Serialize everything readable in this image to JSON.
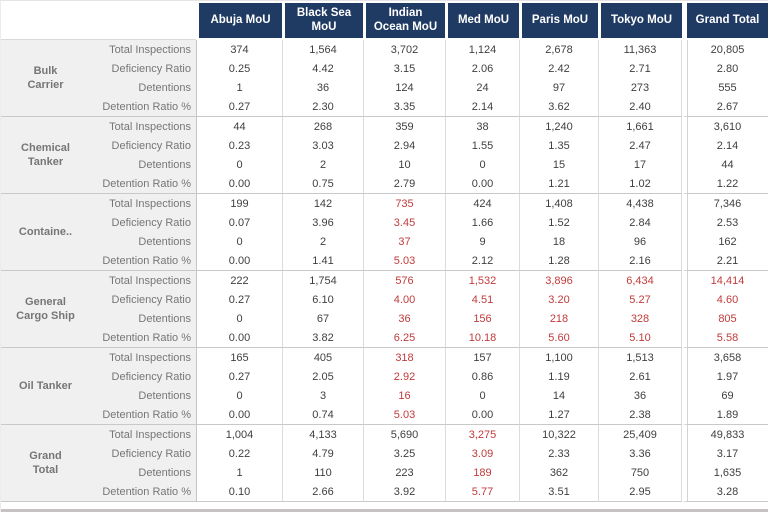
{
  "colors": {
    "header_bg": "#1F3A63",
    "header_text": "#FFFFFF",
    "label_bg": "#F0F0F0",
    "label_text": "#767676",
    "value_text": "#3F3F3F",
    "alert_text": "#C13B3B",
    "grid": "#DCDCDC"
  },
  "chart_data": {
    "type": "table",
    "title": "",
    "corner_label": "",
    "columns": [
      "Abuja MoU",
      "Black Sea MoU",
      "Indian Ocean MoU",
      "Med MoU",
      "Paris MoU",
      "Tokyo MoU",
      "Grand Total"
    ],
    "columns_display": [
      "Abuja MoU",
      "Black Sea\nMoU",
      "Indian\nOcean MoU",
      "Med MoU",
      "Paris MoU",
      "Tokyo MoU",
      "Grand Total"
    ],
    "metrics": [
      "Total Inspections",
      "Deficiency Ratio",
      "Detentions",
      "Detention Ratio %"
    ],
    "highlight_note_color": "#C13B3B",
    "groups": [
      {
        "name": "Bulk Carrier",
        "display": "Bulk\nCarrier",
        "rows": [
          {
            "metric": "Total Inspections",
            "values": [
              "374",
              "1,564",
              "3,702",
              "1,124",
              "2,678",
              "11,363",
              "20,805"
            ],
            "red": [
              0,
              0,
              0,
              0,
              0,
              0,
              0
            ]
          },
          {
            "metric": "Deficiency Ratio",
            "values": [
              "0.25",
              "4.42",
              "3.15",
              "2.06",
              "2.42",
              "2.71",
              "2.80"
            ],
            "red": [
              0,
              0,
              0,
              0,
              0,
              0,
              0
            ]
          },
          {
            "metric": "Detentions",
            "values": [
              "1",
              "36",
              "124",
              "24",
              "97",
              "273",
              "555"
            ],
            "red": [
              0,
              0,
              0,
              0,
              0,
              0,
              0
            ]
          },
          {
            "metric": "Detention Ratio %",
            "values": [
              "0.27",
              "2.30",
              "3.35",
              "2.14",
              "3.62",
              "2.40",
              "2.67"
            ],
            "red": [
              0,
              0,
              0,
              0,
              0,
              0,
              0
            ]
          }
        ]
      },
      {
        "name": "Chemical Tanker",
        "display": "Chemical\nTanker",
        "rows": [
          {
            "metric": "Total Inspections",
            "values": [
              "44",
              "268",
              "359",
              "38",
              "1,240",
              "1,661",
              "3,610"
            ],
            "red": [
              0,
              0,
              0,
              0,
              0,
              0,
              0
            ]
          },
          {
            "metric": "Deficiency Ratio",
            "values": [
              "0.23",
              "3.03",
              "2.94",
              "1.55",
              "1.35",
              "2.47",
              "2.14"
            ],
            "red": [
              0,
              0,
              0,
              0,
              0,
              0,
              0
            ]
          },
          {
            "metric": "Detentions",
            "values": [
              "0",
              "2",
              "10",
              "0",
              "15",
              "17",
              "44"
            ],
            "red": [
              0,
              0,
              0,
              0,
              0,
              0,
              0
            ]
          },
          {
            "metric": "Detention Ratio %",
            "values": [
              "0.00",
              "0.75",
              "2.79",
              "0.00",
              "1.21",
              "1.02",
              "1.22"
            ],
            "red": [
              0,
              0,
              0,
              0,
              0,
              0,
              0
            ]
          }
        ]
      },
      {
        "name": "Containe..",
        "display": "Containe..",
        "rows": [
          {
            "metric": "Total Inspections",
            "values": [
              "199",
              "142",
              "735",
              "424",
              "1,408",
              "4,438",
              "7,346"
            ],
            "red": [
              0,
              0,
              1,
              0,
              0,
              0,
              0
            ]
          },
          {
            "metric": "Deficiency Ratio",
            "values": [
              "0.07",
              "3.96",
              "3.45",
              "1.66",
              "1.52",
              "2.84",
              "2.53"
            ],
            "red": [
              0,
              0,
              1,
              0,
              0,
              0,
              0
            ]
          },
          {
            "metric": "Detentions",
            "values": [
              "0",
              "2",
              "37",
              "9",
              "18",
              "96",
              "162"
            ],
            "red": [
              0,
              0,
              1,
              0,
              0,
              0,
              0
            ]
          },
          {
            "metric": "Detention Ratio %",
            "values": [
              "0.00",
              "1.41",
              "5.03",
              "2.12",
              "1.28",
              "2.16",
              "2.21"
            ],
            "red": [
              0,
              0,
              1,
              0,
              0,
              0,
              0
            ]
          }
        ]
      },
      {
        "name": "General Cargo Ship",
        "display": "General\nCargo Ship",
        "rows": [
          {
            "metric": "Total Inspections",
            "values": [
              "222",
              "1,754",
              "576",
              "1,532",
              "3,896",
              "6,434",
              "14,414"
            ],
            "red": [
              0,
              0,
              1,
              1,
              1,
              1,
              1
            ]
          },
          {
            "metric": "Deficiency Ratio",
            "values": [
              "0.27",
              "6.10",
              "4.00",
              "4.51",
              "3.20",
              "5.27",
              "4.60"
            ],
            "red": [
              0,
              0,
              1,
              1,
              1,
              1,
              1
            ]
          },
          {
            "metric": "Detentions",
            "values": [
              "0",
              "67",
              "36",
              "156",
              "218",
              "328",
              "805"
            ],
            "red": [
              0,
              0,
              1,
              1,
              1,
              1,
              1
            ]
          },
          {
            "metric": "Detention Ratio %",
            "values": [
              "0.00",
              "3.82",
              "6.25",
              "10.18",
              "5.60",
              "5.10",
              "5.58"
            ],
            "red": [
              0,
              0,
              1,
              1,
              1,
              1,
              1
            ]
          }
        ]
      },
      {
        "name": "Oil Tanker",
        "display": "Oil Tanker",
        "rows": [
          {
            "metric": "Total Inspections",
            "values": [
              "165",
              "405",
              "318",
              "157",
              "1,100",
              "1,513",
              "3,658"
            ],
            "red": [
              0,
              0,
              1,
              0,
              0,
              0,
              0
            ]
          },
          {
            "metric": "Deficiency Ratio",
            "values": [
              "0.27",
              "2.05",
              "2.92",
              "0.86",
              "1.19",
              "2.61",
              "1.97"
            ],
            "red": [
              0,
              0,
              1,
              0,
              0,
              0,
              0
            ]
          },
          {
            "metric": "Detentions",
            "values": [
              "0",
              "3",
              "16",
              "0",
              "14",
              "36",
              "69"
            ],
            "red": [
              0,
              0,
              1,
              0,
              0,
              0,
              0
            ]
          },
          {
            "metric": "Detention Ratio %",
            "values": [
              "0.00",
              "0.74",
              "5.03",
              "0.00",
              "1.27",
              "2.38",
              "1.89"
            ],
            "red": [
              0,
              0,
              1,
              0,
              0,
              0,
              0
            ]
          }
        ]
      },
      {
        "name": "Grand Total",
        "display": "Grand\nTotal",
        "rows": [
          {
            "metric": "Total Inspections",
            "values": [
              "1,004",
              "4,133",
              "5,690",
              "3,275",
              "10,322",
              "25,409",
              "49,833"
            ],
            "red": [
              0,
              0,
              0,
              1,
              0,
              0,
              0
            ]
          },
          {
            "metric": "Deficiency Ratio",
            "values": [
              "0.22",
              "4.79",
              "3.25",
              "3.09",
              "2.33",
              "3.36",
              "3.17"
            ],
            "red": [
              0,
              0,
              0,
              1,
              0,
              0,
              0
            ]
          },
          {
            "metric": "Detentions",
            "values": [
              "1",
              "110",
              "223",
              "189",
              "362",
              "750",
              "1,635"
            ],
            "red": [
              0,
              0,
              0,
              1,
              0,
              0,
              0
            ]
          },
          {
            "metric": "Detention Ratio %",
            "values": [
              "0.10",
              "2.66",
              "3.92",
              "5.77",
              "3.51",
              "2.95",
              "3.28"
            ],
            "red": [
              0,
              0,
              0,
              1,
              0,
              0,
              0
            ]
          }
        ]
      }
    ]
  }
}
